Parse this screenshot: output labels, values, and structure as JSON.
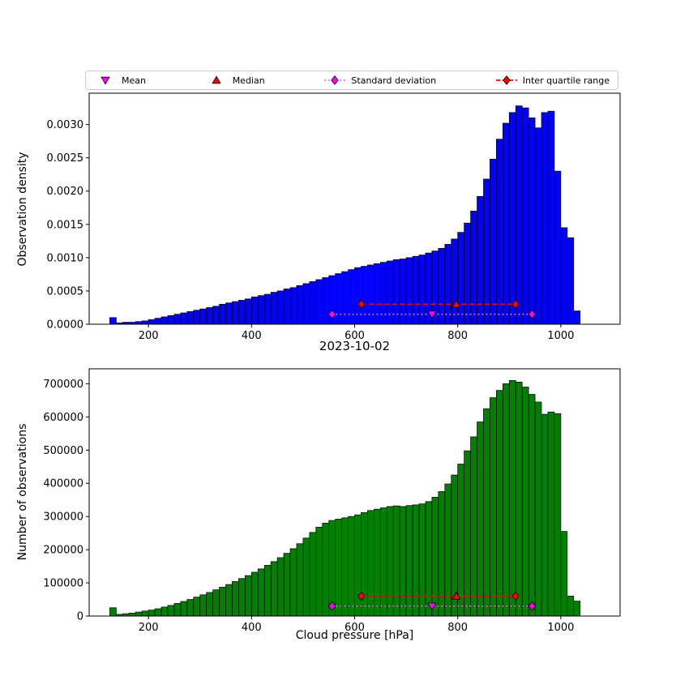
{
  "legend": {
    "items": [
      {
        "label": "Mean",
        "marker": "triangle-down",
        "color": "#ff00ff",
        "line": "none",
        "line_color": "#ff00ff"
      },
      {
        "label": "Median",
        "marker": "triangle-up",
        "color": "#ff0000",
        "line": "none",
        "line_color": "#ff0000"
      },
      {
        "label": "Standard deviation",
        "marker": "diamond",
        "color": "#ff00ff",
        "line": "dotted",
        "line_color": "#da70d6"
      },
      {
        "label": "Inter quartile range",
        "marker": "diamond",
        "color": "#ff0000",
        "line": "dashed",
        "line_color": "#ff0000"
      }
    ]
  },
  "chart_data": [
    {
      "type": "bar",
      "subtype": "histogram",
      "ylabel": "Observation density",
      "bar_color": "#0000ff",
      "bar_edge_color": "#000000",
      "bin_start": 125,
      "bin_width": 12.5,
      "xlim": [
        85,
        1115
      ],
      "ylim": [
        0,
        0.00347
      ],
      "xticks": [
        200,
        400,
        600,
        800,
        1000
      ],
      "xtick_labels": [
        "200",
        "400",
        "600",
        "800",
        "1000"
      ],
      "yticks": [
        0,
        0.0005,
        0.001,
        0.0015,
        0.002,
        0.0025,
        0.003
      ],
      "ytick_labels": [
        "0.0000",
        "0.0005",
        "0.0010",
        "0.0015",
        "0.0020",
        "0.0025",
        "0.0030"
      ],
      "values": [
        0.0001,
        2e-05,
        3e-05,
        3e-05,
        4e-05,
        5e-05,
        7e-05,
        9e-05,
        0.00011,
        0.00013,
        0.00015,
        0.00017,
        0.00019,
        0.00021,
        0.00023,
        0.00025,
        0.00027,
        0.0003,
        0.00032,
        0.00034,
        0.00036,
        0.00038,
        0.00041,
        0.00043,
        0.00045,
        0.00048,
        0.0005,
        0.00053,
        0.00055,
        0.00058,
        0.00061,
        0.00064,
        0.00067,
        0.0007,
        0.00073,
        0.00076,
        0.00079,
        0.00082,
        0.00085,
        0.00087,
        0.00089,
        0.00091,
        0.00093,
        0.00095,
        0.00097,
        0.00098,
        0.001,
        0.00102,
        0.00104,
        0.00107,
        0.0011,
        0.00114,
        0.0012,
        0.00128,
        0.00138,
        0.00152,
        0.0017,
        0.00192,
        0.00218,
        0.00248,
        0.00278,
        0.00302,
        0.00318,
        0.00328,
        0.00325,
        0.0031,
        0.00295,
        0.00318,
        0.0032,
        0.0023,
        0.00145,
        0.0013,
        0.0002
      ],
      "stats": {
        "mean": 750,
        "median": 797,
        "std_range": [
          556,
          944
        ],
        "iqr_range": [
          613,
          912
        ],
        "row_y_std": 0.00015,
        "row_y_iqr": 0.0003,
        "mean_color": "#ff00ff",
        "median_color": "#ff0000",
        "std_line_color": "#da70d6",
        "std_marker_color": "#ff00ff",
        "iqr_color": "#ff0000"
      }
    },
    {
      "type": "bar",
      "subtype": "histogram",
      "title": "2023-10-02",
      "xlabel": "Cloud pressure [hPa]",
      "ylabel": "Number of observations",
      "bar_color": "#008000",
      "bar_edge_color": "#000000",
      "bin_start": 125,
      "bin_width": 12.5,
      "xlim": [
        85,
        1115
      ],
      "ylim": [
        0,
        745000
      ],
      "xticks": [
        200,
        400,
        600,
        800,
        1000
      ],
      "xtick_labels": [
        "200",
        "400",
        "600",
        "800",
        "1000"
      ],
      "yticks": [
        0,
        100000,
        200000,
        300000,
        400000,
        500000,
        600000,
        700000
      ],
      "ytick_labels": [
        "0",
        "100000",
        "200000",
        "300000",
        "400000",
        "500000",
        "600000",
        "700000"
      ],
      "values": [
        25000,
        5000,
        7000,
        9000,
        12000,
        15000,
        18000,
        22000,
        27000,
        32000,
        38000,
        44000,
        50000,
        57000,
        64000,
        71000,
        79000,
        87000,
        95000,
        104000,
        113000,
        122000,
        132000,
        142000,
        153000,
        164000,
        176000,
        189000,
        203000,
        218000,
        235000,
        252000,
        268000,
        280000,
        288000,
        292000,
        296000,
        300000,
        305000,
        312000,
        318000,
        322000,
        326000,
        330000,
        332000,
        330000,
        333000,
        335000,
        338000,
        345000,
        358000,
        375000,
        398000,
        425000,
        458000,
        498000,
        540000,
        585000,
        625000,
        658000,
        680000,
        700000,
        710000,
        705000,
        690000,
        668000,
        645000,
        608000,
        615000,
        610000,
        255000,
        60000,
        45000
      ],
      "stats": {
        "mean": 750,
        "median": 797,
        "std_range": [
          556,
          944
        ],
        "iqr_range": [
          613,
          912
        ],
        "row_y_std": 30000,
        "row_y_iqr": 60000,
        "mean_color": "#ff00ff",
        "median_color": "#ff0000",
        "std_line_color": "#da70d6",
        "std_marker_color": "#ff00ff",
        "iqr_color": "#ff0000"
      }
    }
  ]
}
